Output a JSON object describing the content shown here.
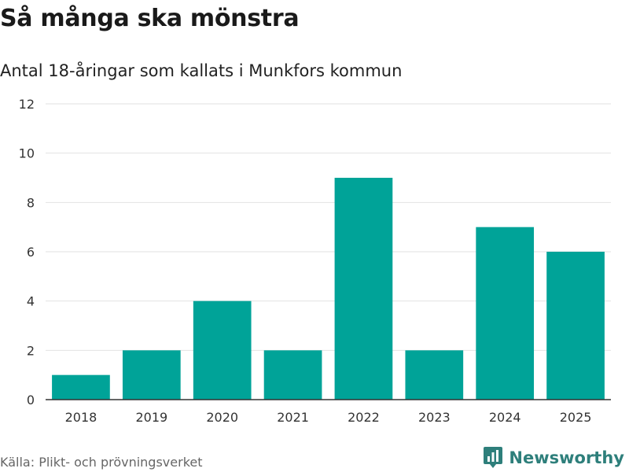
{
  "title": "Så många ska mönstra",
  "subtitle": "Antal 18-åringar som kallats i Munkfors kommun",
  "source": "Källa: Plikt- och prövningsverket",
  "brand": {
    "name": "Newsworthy",
    "icon": "bar-chart-logo-icon",
    "color": "#2e7f7b"
  },
  "chart_data": {
    "type": "bar",
    "categories": [
      "2018",
      "2019",
      "2020",
      "2021",
      "2022",
      "2023",
      "2024",
      "2025"
    ],
    "values": [
      1,
      2,
      4,
      2,
      9,
      2,
      7,
      6
    ],
    "title": "Så många ska mönstra",
    "subtitle": "Antal 18-åringar som kallats i Munkfors kommun",
    "xlabel": "",
    "ylabel": "",
    "ylim": [
      0,
      12
    ],
    "yticks": [
      0,
      2,
      4,
      6,
      8,
      10,
      12
    ],
    "grid": true,
    "color": "#00a398",
    "legend": "none"
  }
}
